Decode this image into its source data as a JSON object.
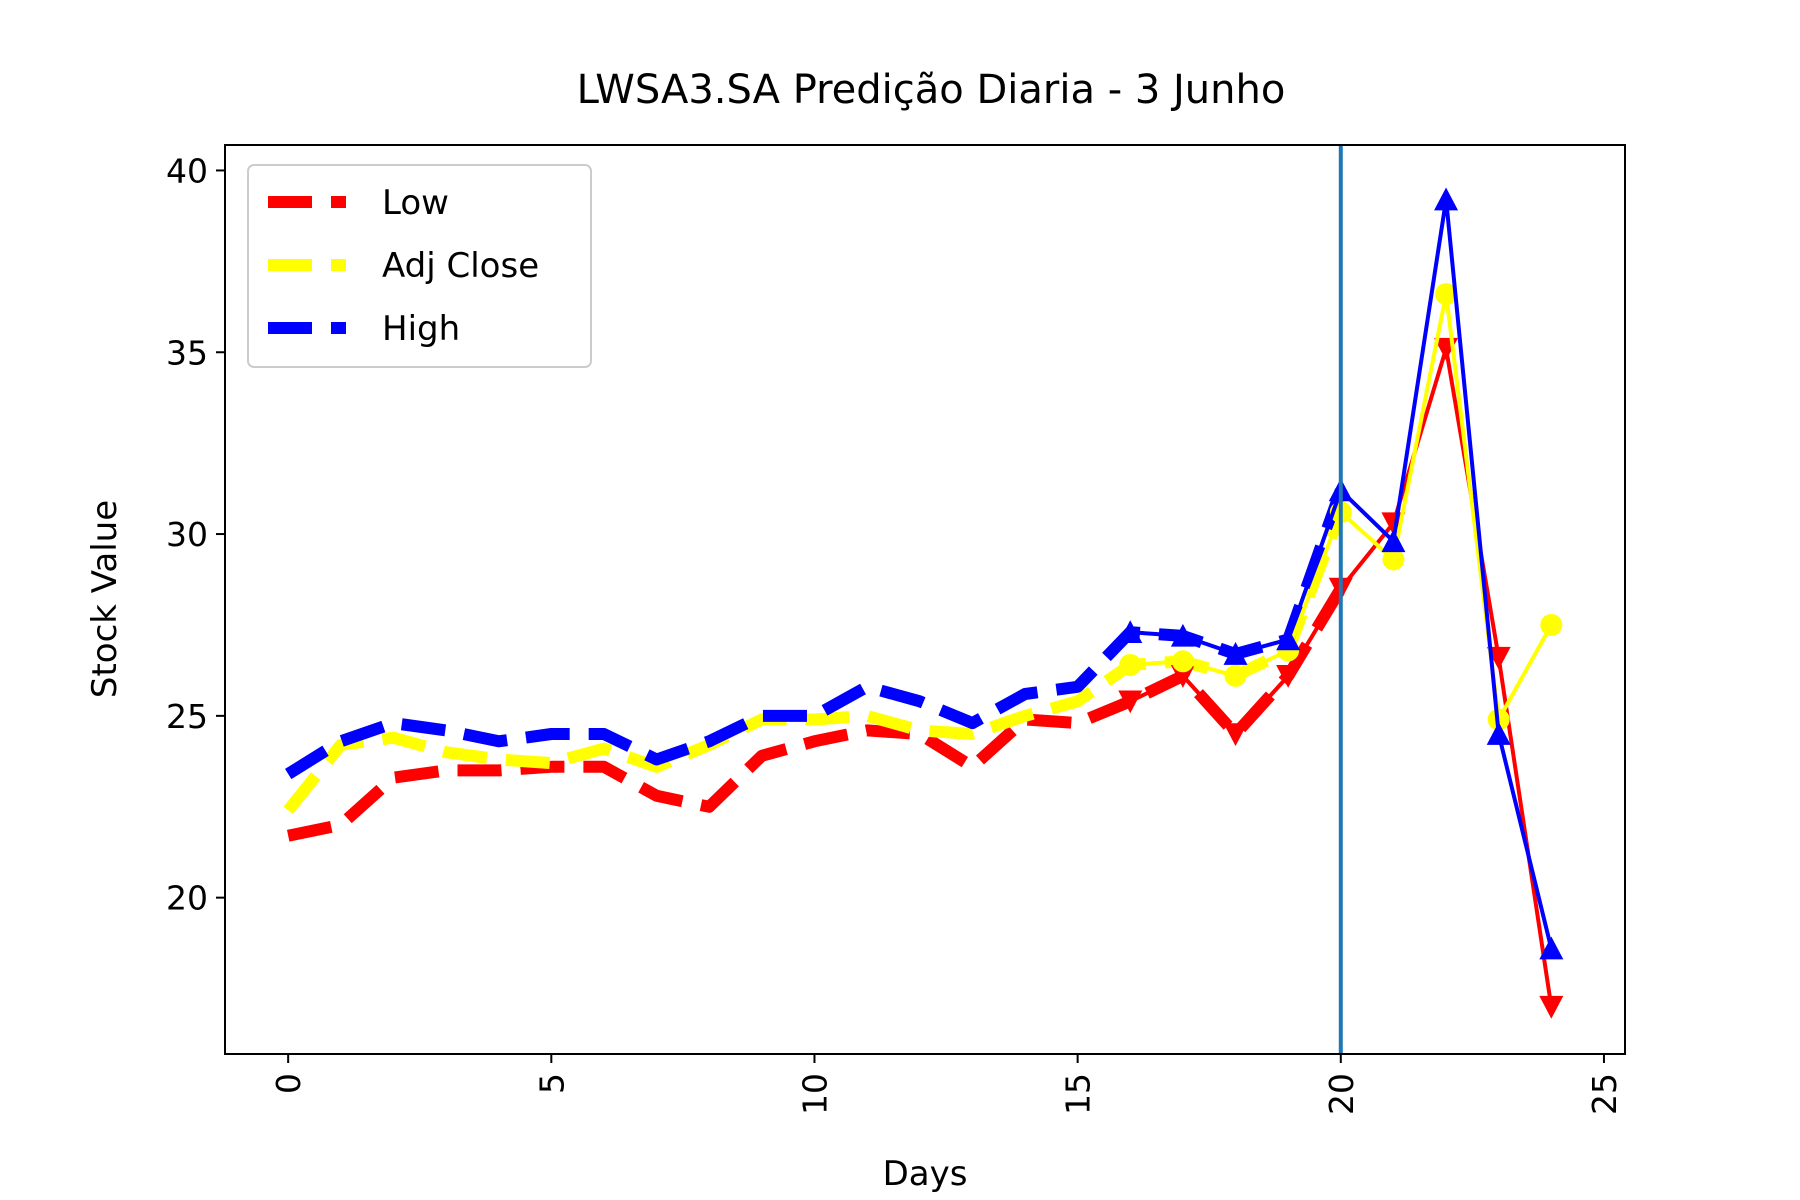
{
  "chart_data": {
    "type": "line",
    "title": "LWSA3.SA Predição Diaria - 3 Junho",
    "xlabel": "Days",
    "ylabel": "Stock Value",
    "xlim": [
      -1.2,
      25.4
    ],
    "ylim": [
      15.7,
      40.7
    ],
    "xticks": [
      0,
      5,
      10,
      15,
      20,
      25
    ],
    "yticks": [
      20,
      25,
      30,
      35,
      40
    ],
    "grid": false,
    "legend_position": "top-left",
    "prediction_line_x": 20,
    "prediction_line_color": "#1f77b4",
    "series": [
      {
        "name": "Low",
        "color": "#ff0000",
        "marker": "triangle-down",
        "history_x": [
          0,
          1,
          2,
          3,
          4,
          5,
          6,
          7,
          8,
          9,
          10,
          11,
          12,
          13,
          14,
          15,
          16,
          17,
          18,
          19,
          20
        ],
        "history_y": [
          21.7,
          22.0,
          23.3,
          23.5,
          23.5,
          23.6,
          23.6,
          22.8,
          22.5,
          23.9,
          24.3,
          24.6,
          24.5,
          23.6,
          24.9,
          24.8,
          25.4,
          26.1,
          24.5,
          26.1,
          28.5
        ],
        "prediction_x": [
          16,
          17,
          18,
          19,
          20,
          21,
          22,
          23,
          24
        ],
        "prediction_y": [
          25.4,
          26.1,
          24.5,
          26.1,
          28.5,
          30.3,
          35.1,
          26.6,
          17.0
        ]
      },
      {
        "name": "Adj Close",
        "color": "#ffff00",
        "marker": "circle",
        "history_x": [
          0,
          1,
          2,
          3,
          4,
          5,
          6,
          7,
          8,
          9,
          10,
          11,
          12,
          13,
          14,
          15,
          16,
          17,
          18,
          19,
          20
        ],
        "history_y": [
          22.4,
          24.2,
          24.4,
          24.0,
          23.8,
          23.7,
          24.1,
          23.6,
          24.2,
          24.9,
          24.9,
          25.0,
          24.6,
          24.5,
          25.0,
          25.4,
          26.4,
          26.5,
          26.1,
          26.8,
          30.6
        ],
        "prediction_x": [
          16,
          17,
          18,
          19,
          20,
          21,
          22,
          23,
          24
        ],
        "prediction_y": [
          26.4,
          26.5,
          26.1,
          26.8,
          30.6,
          29.3,
          36.6,
          24.9,
          27.5
        ]
      },
      {
        "name": "High",
        "color": "#0000ff",
        "marker": "triangle-up",
        "history_x": [
          0,
          1,
          2,
          3,
          4,
          5,
          6,
          7,
          8,
          9,
          10,
          11,
          12,
          13,
          14,
          15,
          16,
          17,
          18,
          19,
          20
        ],
        "history_y": [
          23.4,
          24.3,
          24.8,
          24.6,
          24.3,
          24.5,
          24.5,
          23.8,
          24.3,
          25.0,
          25.0,
          25.8,
          25.4,
          24.8,
          25.6,
          25.8,
          27.3,
          27.2,
          26.7,
          27.1,
          31.2
        ],
        "prediction_x": [
          16,
          17,
          18,
          19,
          20,
          21,
          22,
          23,
          24
        ],
        "prediction_y": [
          27.3,
          27.2,
          26.7,
          27.1,
          31.2,
          29.8,
          39.2,
          24.5,
          18.6
        ]
      }
    ]
  }
}
